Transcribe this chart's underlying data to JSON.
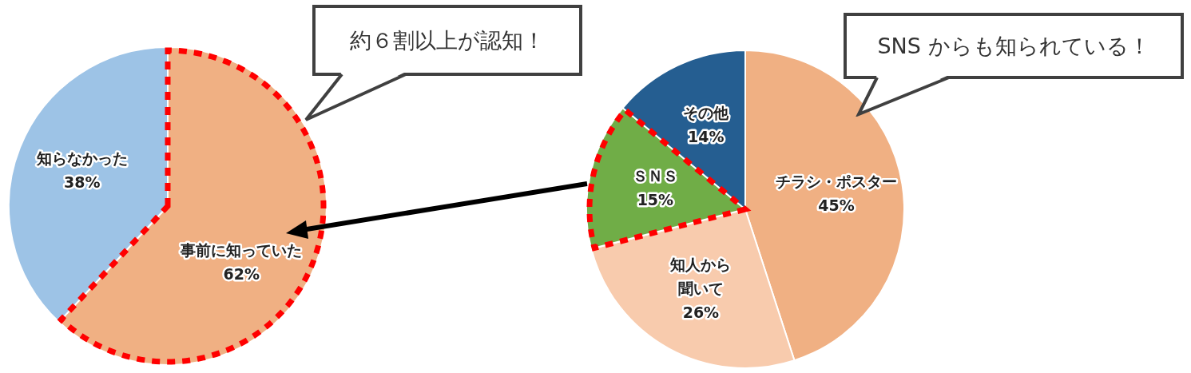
{
  "chart_data": [
    {
      "type": "pie",
      "categories": [
        "事前に知っていた",
        "知らなかった"
      ],
      "values": [
        62,
        38
      ],
      "value_labels": [
        "62%",
        "38%"
      ],
      "colors": [
        "#f0b083",
        "#9dc3e6"
      ],
      "data_labels": true,
      "legend": false,
      "annotations": [
        "約６割以上が認知！"
      ]
    },
    {
      "type": "pie",
      "categories": [
        "チラシ・ポスター",
        "知人から聞いて",
        "ＳＮＳ",
        "その他"
      ],
      "values": [
        45,
        26,
        15,
        14
      ],
      "value_labels": [
        "45%",
        "26%",
        "15%",
        "14%"
      ],
      "colors": [
        "#f0b083",
        "#f8cbad",
        "#70ad47",
        "#255e91"
      ],
      "data_labels": true,
      "legend": false,
      "annotations": [
        "SNS からも知られている！"
      ]
    }
  ]
}
